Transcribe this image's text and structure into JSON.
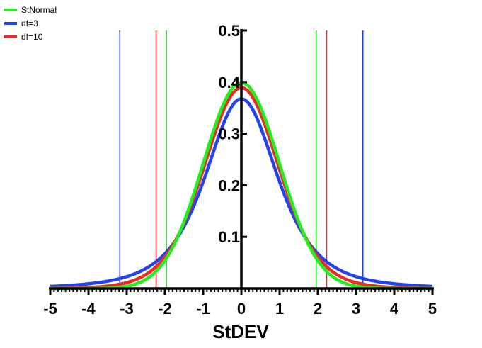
{
  "chart_data": {
    "type": "line",
    "title": "",
    "xlabel": "StDEV",
    "ylabel": "",
    "xlim": [
      -5,
      5
    ],
    "ylim": [
      0,
      0.5
    ],
    "x_ticks": [
      "-5",
      "-4",
      "-3",
      "-2",
      "-1",
      "0",
      "1",
      "2",
      "3",
      "4",
      "5"
    ],
    "y_ticks": [
      "0.1",
      "0.2",
      "0.3",
      "0.4",
      "0.5"
    ],
    "legend_position": "top-left",
    "series": [
      {
        "name": "StNormal",
        "color": "#22ee22",
        "distribution": "standard normal",
        "critical_values": [
          -1.96,
          1.96
        ]
      },
      {
        "name": "df=3",
        "color": "#2244ee",
        "distribution": "student t, df=3",
        "critical_values": [
          -3.18,
          3.18
        ]
      },
      {
        "name": "df=10",
        "color": "#ee2a22",
        "distribution": "student t, df=10",
        "critical_values": [
          -2.23,
          2.23
        ]
      }
    ]
  }
}
